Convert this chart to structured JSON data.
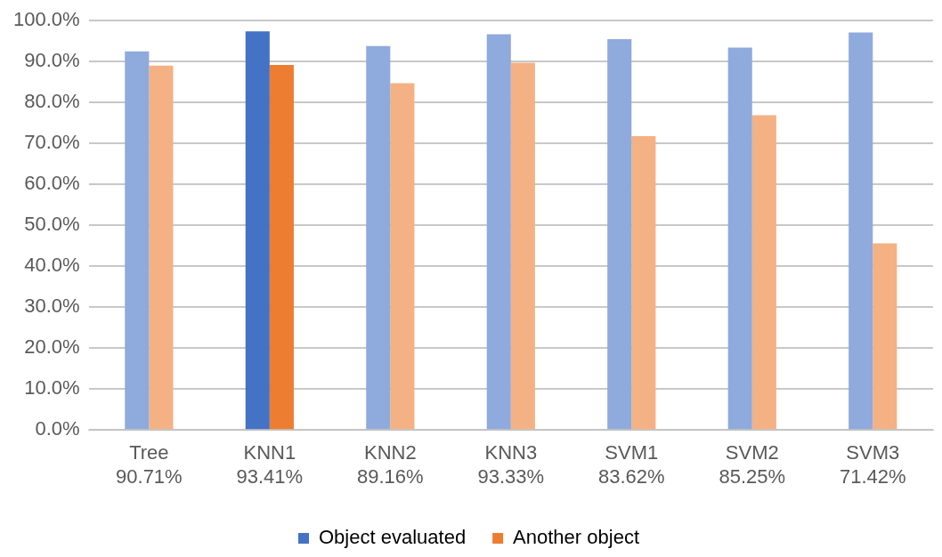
{
  "chart_data": {
    "type": "bar",
    "categories": [
      "Tree\n90.71%",
      "KNN1\n93.41%",
      "KNN2\n89.16%",
      "KNN3\n93.33%",
      "SVM1\n83.62%",
      "SVM2\n85.25%",
      "SVM3\n71.42%"
    ],
    "series": [
      {
        "name": "Object evaluated",
        "color": "#4472c4",
        "colors": [
          "#8faadc",
          "#4472c4",
          "#8faadc",
          "#8faadc",
          "#8faadc",
          "#8faadc",
          "#8faadc"
        ],
        "values": [
          92.5,
          97.4,
          93.8,
          96.7,
          95.5,
          93.4,
          97.1
        ]
      },
      {
        "name": "Another object",
        "color": "#ed7d31",
        "colors": [
          "#f4b183",
          "#ed7d31",
          "#f4b183",
          "#f4b183",
          "#f4b183",
          "#f4b183",
          "#f4b183"
        ],
        "values": [
          89.0,
          89.2,
          84.7,
          89.7,
          71.8,
          76.9,
          45.6
        ]
      }
    ],
    "ylim": [
      0,
      100
    ],
    "yticks": [
      {
        "value": 0,
        "label": "0.0%"
      },
      {
        "value": 10,
        "label": "10.0%"
      },
      {
        "value": 20,
        "label": "20.0%"
      },
      {
        "value": 30,
        "label": "30.0%"
      },
      {
        "value": 40,
        "label": "40.0%"
      },
      {
        "value": 50,
        "label": "50.0%"
      },
      {
        "value": 60,
        "label": "60.0%"
      },
      {
        "value": 70,
        "label": "70.0%"
      },
      {
        "value": 80,
        "label": "80.0%"
      },
      {
        "value": 90,
        "label": "90.0%"
      },
      {
        "value": 100,
        "label": "100.0%"
      }
    ],
    "grid": "y",
    "legend": "bottom"
  }
}
